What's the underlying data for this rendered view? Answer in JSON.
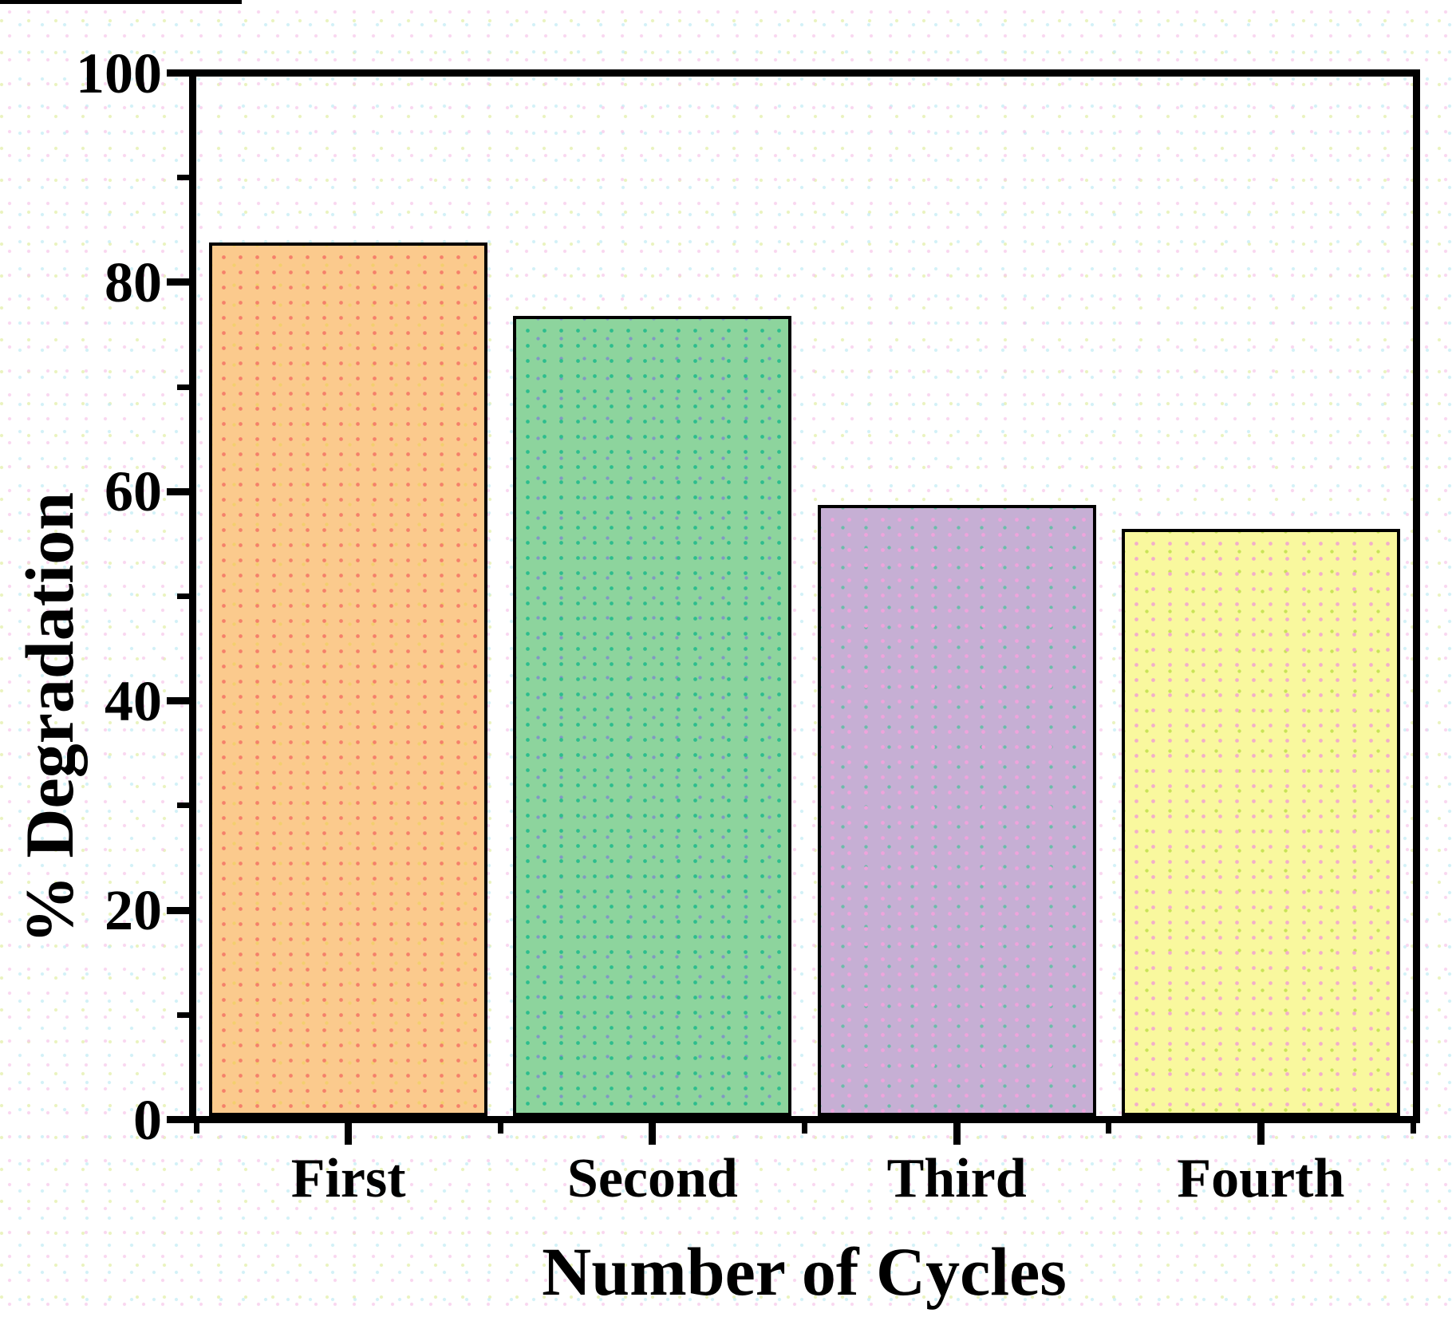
{
  "figure": {
    "background_color": "#ffffff",
    "frame_color": "#000000",
    "background_dot_colors": [
      "#f7c9ea",
      "#c3ecf4",
      "#e4f0ae"
    ]
  },
  "chart_data": {
    "type": "bar",
    "title": "",
    "xlabel": "Number of Cycles",
    "ylabel": "% Degradation",
    "categories": [
      "First",
      "Second",
      "Third",
      "Fourth"
    ],
    "values": [
      84,
      77,
      58.8,
      56.5
    ],
    "ylim": [
      0,
      100
    ],
    "yticks_major": [
      0,
      20,
      40,
      60,
      80,
      100
    ],
    "yticks_minor": [
      10,
      30,
      50,
      70,
      90
    ],
    "grid": false,
    "legend": "none",
    "bar_edge_color": "#000000",
    "bar_styles": [
      {
        "category": "First",
        "fill": "#fbca8d",
        "dot1": "#f5806a",
        "dot2": "#f3cf6e"
      },
      {
        "category": "Second",
        "fill": "#8dd49d",
        "dot1": "#2dbd8d",
        "dot2": "#8099c2"
      },
      {
        "category": "Third",
        "fill": "#c6afd4",
        "dot1": "#efa3dc",
        "dot2": "#6cbcaa"
      },
      {
        "category": "Fourth",
        "fill": "#f9f89e",
        "dot1": "#f2aeca",
        "dot2": "#c9e457"
      }
    ]
  }
}
